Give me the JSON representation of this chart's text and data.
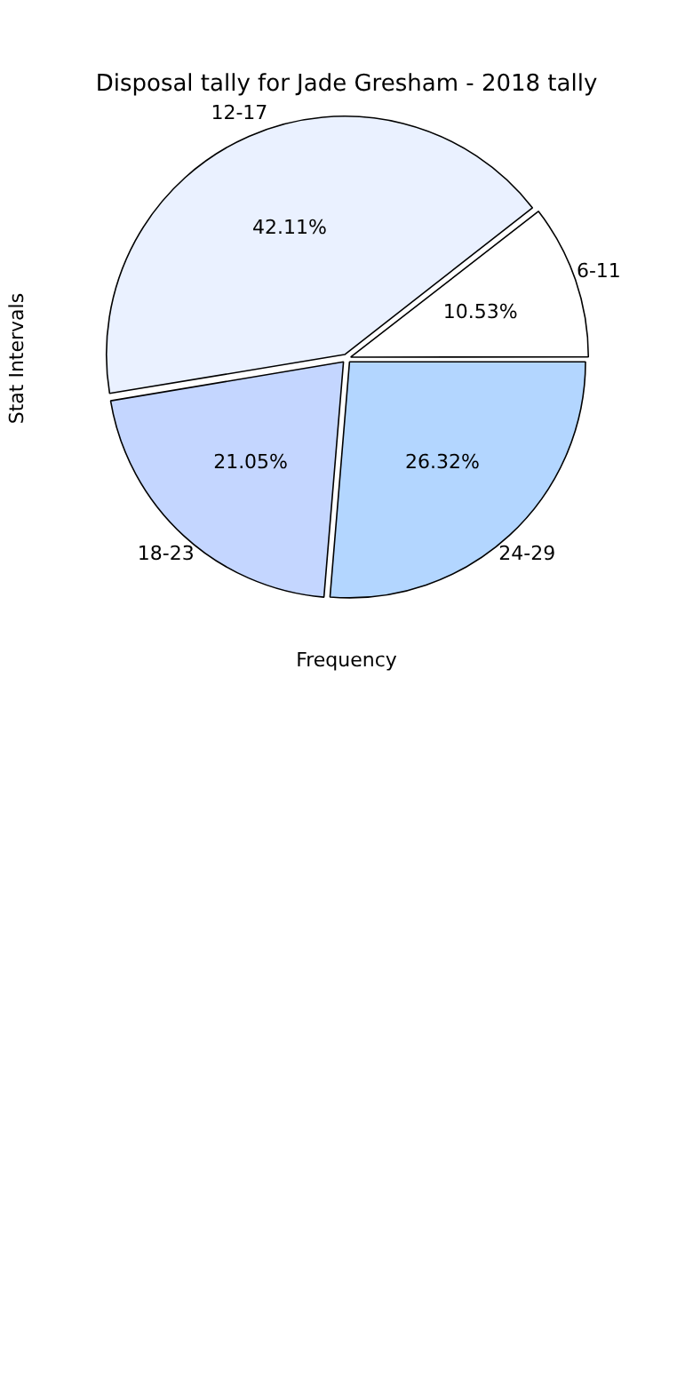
{
  "chart_data": {
    "type": "pie",
    "title": "Disposal tally for Jade Gresham - 2018 tally",
    "xlabel": "Frequency",
    "ylabel": "Stat Intervals",
    "categories": [
      "6-11",
      "12-17",
      "18-23",
      "24-29"
    ],
    "values": [
      10.53,
      42.11,
      21.05,
      26.32
    ],
    "value_labels": [
      "10.53%",
      "42.11%",
      "21.05%",
      "26.32%"
    ],
    "colors": [
      "#ffffff",
      "#eaf1ff",
      "#c4d6ff",
      "#b3d6ff"
    ],
    "legend": false
  }
}
